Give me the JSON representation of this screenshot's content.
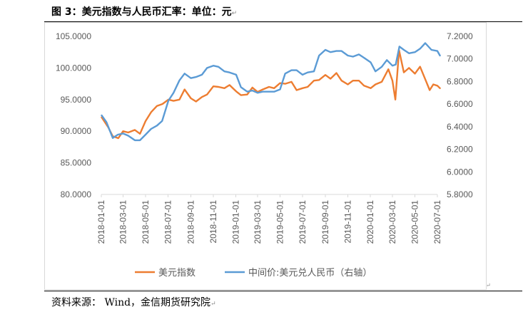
{
  "figure": {
    "title": "图 3：美元指数与人民币汇率：单位：元",
    "source": "资料来源： Wind，金信期货研究院"
  },
  "colors": {
    "orange": "#ED7D31",
    "blue": "#5B9BD5",
    "axis_text": "#595959",
    "grid": "#d9d9d9"
  },
  "chart_data": {
    "type": "line",
    "title": "",
    "grid": false,
    "legend_position": "bottom",
    "x_tick_labels": [
      "2018-01-01",
      "2018-03-01",
      "2018-05-01",
      "2018-07-01",
      "2018-09-01",
      "2018-11-01",
      "2019-01-01",
      "2019-03-01",
      "2019-05-01",
      "2019-07-01",
      "2019-09-01",
      "2019-11-01",
      "2020-01-01",
      "2020-03-01",
      "2020-05-01",
      "2020-07-01"
    ],
    "y_left": {
      "min": 80,
      "max": 105,
      "tick_labels": [
        "80.0000",
        "85.0000",
        "90.0000",
        "95.0000",
        "100.0000",
        "105.0000"
      ]
    },
    "y_right": {
      "min": 5.8,
      "max": 7.2,
      "tick_labels": [
        "5.8000",
        "6.0000",
        "6.2000",
        "6.4000",
        "6.6000",
        "6.8000",
        "7.0000",
        "7.2000"
      ]
    },
    "series": [
      {
        "name": "美元指数",
        "axis": "left",
        "color": "#ED7D31",
        "points": [
          [
            "2018-01-02",
            92.2
          ],
          [
            "2018-01-20",
            90.6
          ],
          [
            "2018-02-01",
            89.2
          ],
          [
            "2018-02-16",
            88.9
          ],
          [
            "2018-03-01",
            90.0
          ],
          [
            "2018-03-15",
            89.8
          ],
          [
            "2018-04-02",
            90.2
          ],
          [
            "2018-04-16",
            89.6
          ],
          [
            "2018-05-01",
            91.6
          ],
          [
            "2018-05-16",
            93.0
          ],
          [
            "2018-06-01",
            94.0
          ],
          [
            "2018-06-16",
            94.3
          ],
          [
            "2018-07-02",
            95.0
          ],
          [
            "2018-07-16",
            94.8
          ],
          [
            "2018-08-01",
            95.0
          ],
          [
            "2018-08-15",
            96.6
          ],
          [
            "2018-09-01",
            95.2
          ],
          [
            "2018-09-15",
            94.7
          ],
          [
            "2018-10-01",
            95.4
          ],
          [
            "2018-10-15",
            95.8
          ],
          [
            "2018-11-01",
            97.1
          ],
          [
            "2018-11-15",
            97.0
          ],
          [
            "2018-12-01",
            96.8
          ],
          [
            "2018-12-15",
            97.3
          ],
          [
            "2019-01-02",
            96.3
          ],
          [
            "2019-01-15",
            95.7
          ],
          [
            "2019-02-01",
            95.8
          ],
          [
            "2019-02-15",
            96.9
          ],
          [
            "2019-03-01",
            96.2
          ],
          [
            "2019-03-15",
            96.6
          ],
          [
            "2019-04-01",
            97.0
          ],
          [
            "2019-04-15",
            96.8
          ],
          [
            "2019-05-01",
            97.6
          ],
          [
            "2019-05-15",
            97.5
          ],
          [
            "2019-06-01",
            97.8
          ],
          [
            "2019-06-15",
            96.5
          ],
          [
            "2019-07-01",
            96.8
          ],
          [
            "2019-07-15",
            97.0
          ],
          [
            "2019-08-01",
            98.0
          ],
          [
            "2019-08-15",
            98.1
          ],
          [
            "2019-09-01",
            98.9
          ],
          [
            "2019-09-15",
            98.3
          ],
          [
            "2019-10-01",
            99.2
          ],
          [
            "2019-10-15",
            98.0
          ],
          [
            "2019-11-01",
            97.4
          ],
          [
            "2019-11-15",
            98.0
          ],
          [
            "2019-12-01",
            98.0
          ],
          [
            "2019-12-15",
            97.2
          ],
          [
            "2020-01-02",
            96.8
          ],
          [
            "2020-01-15",
            97.4
          ],
          [
            "2020-02-01",
            97.8
          ],
          [
            "2020-02-19",
            99.8
          ],
          [
            "2020-03-01",
            98.0
          ],
          [
            "2020-03-09",
            95.0
          ],
          [
            "2020-03-19",
            102.8
          ],
          [
            "2020-04-01",
            99.3
          ],
          [
            "2020-04-15",
            100.0
          ],
          [
            "2020-05-01",
            99.1
          ],
          [
            "2020-05-15",
            100.2
          ],
          [
            "2020-06-01",
            97.8
          ],
          [
            "2020-06-10",
            96.5
          ],
          [
            "2020-06-20",
            97.4
          ],
          [
            "2020-07-01",
            97.2
          ],
          [
            "2020-07-08",
            96.8
          ]
        ]
      },
      {
        "name": "中间价:美元兑人民币（右轴）",
        "axis": "right",
        "color": "#5B9BD5",
        "points": [
          [
            "2018-01-02",
            6.5
          ],
          [
            "2018-01-15",
            6.44
          ],
          [
            "2018-02-01",
            6.3
          ],
          [
            "2018-02-15",
            6.33
          ],
          [
            "2018-03-01",
            6.34
          ],
          [
            "2018-03-15",
            6.32
          ],
          [
            "2018-04-02",
            6.28
          ],
          [
            "2018-04-16",
            6.28
          ],
          [
            "2018-05-01",
            6.33
          ],
          [
            "2018-05-16",
            6.38
          ],
          [
            "2018-06-01",
            6.41
          ],
          [
            "2018-06-15",
            6.45
          ],
          [
            "2018-07-02",
            6.63
          ],
          [
            "2018-07-16",
            6.7
          ],
          [
            "2018-08-01",
            6.81
          ],
          [
            "2018-08-15",
            6.87
          ],
          [
            "2018-09-01",
            6.83
          ],
          [
            "2018-09-15",
            6.84
          ],
          [
            "2018-10-01",
            6.86
          ],
          [
            "2018-10-15",
            6.92
          ],
          [
            "2018-11-01",
            6.94
          ],
          [
            "2018-11-15",
            6.93
          ],
          [
            "2018-12-01",
            6.89
          ],
          [
            "2018-12-15",
            6.88
          ],
          [
            "2019-01-02",
            6.86
          ],
          [
            "2019-01-15",
            6.75
          ],
          [
            "2019-02-01",
            6.71
          ],
          [
            "2019-02-15",
            6.72
          ],
          [
            "2019-03-01",
            6.7
          ],
          [
            "2019-03-15",
            6.71
          ],
          [
            "2019-04-01",
            6.71
          ],
          [
            "2019-04-15",
            6.71
          ],
          [
            "2019-05-01",
            6.73
          ],
          [
            "2019-05-15",
            6.87
          ],
          [
            "2019-06-01",
            6.9
          ],
          [
            "2019-06-15",
            6.9
          ],
          [
            "2019-07-01",
            6.86
          ],
          [
            "2019-07-15",
            6.88
          ],
          [
            "2019-08-01",
            6.89
          ],
          [
            "2019-08-15",
            7.03
          ],
          [
            "2019-09-01",
            7.08
          ],
          [
            "2019-09-15",
            7.06
          ],
          [
            "2019-10-01",
            7.07
          ],
          [
            "2019-10-15",
            7.07
          ],
          [
            "2019-11-01",
            7.03
          ],
          [
            "2019-11-15",
            7.02
          ],
          [
            "2019-12-01",
            7.04
          ],
          [
            "2019-12-15",
            7.01
          ],
          [
            "2020-01-02",
            6.97
          ],
          [
            "2020-01-15",
            6.89
          ],
          [
            "2020-02-01",
            6.93
          ],
          [
            "2020-02-15",
            6.99
          ],
          [
            "2020-03-01",
            6.94
          ],
          [
            "2020-03-10",
            6.95
          ],
          [
            "2020-03-20",
            7.11
          ],
          [
            "2020-04-01",
            7.08
          ],
          [
            "2020-04-15",
            7.05
          ],
          [
            "2020-05-01",
            7.06
          ],
          [
            "2020-05-15",
            7.09
          ],
          [
            "2020-05-29",
            7.14
          ],
          [
            "2020-06-15",
            7.08
          ],
          [
            "2020-07-01",
            7.07
          ],
          [
            "2020-07-08",
            7.03
          ]
        ]
      }
    ]
  }
}
